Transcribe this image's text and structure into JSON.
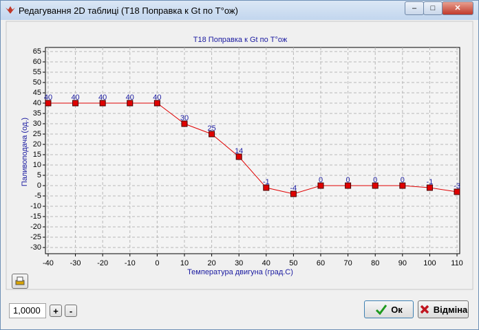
{
  "window": {
    "title": "Редагування 2D таблиці (T18 Поправка к Gt по T°ож)"
  },
  "chart_data": {
    "type": "line",
    "title": "T18 Поправка к Gt по T°ож",
    "x_label": "Температура двигуна (град.С)",
    "y_label": "Паливоподача (од.)",
    "x": [
      -40,
      -30,
      -20,
      -10,
      0,
      10,
      20,
      30,
      40,
      50,
      60,
      70,
      80,
      90,
      100,
      110
    ],
    "values": [
      40,
      40,
      40,
      40,
      40,
      30,
      25,
      14,
      -1,
      -4,
      0,
      0,
      0,
      0,
      -1,
      -3
    ],
    "color": "#e00000",
    "xlim": [
      -41,
      111
    ],
    "xticks": [
      -40,
      -30,
      -20,
      -10,
      0,
      10,
      20,
      30,
      40,
      50,
      60,
      70,
      80,
      90,
      100,
      110
    ],
    "ylim": [
      -33,
      67
    ],
    "yticks": [
      -30,
      -25,
      -20,
      -15,
      -10,
      -5,
      0,
      5,
      10,
      15,
      20,
      25,
      30,
      35,
      40,
      45,
      50,
      55,
      60,
      65
    ],
    "grid": true
  },
  "controls": {
    "step": "1,0000",
    "plus": "+",
    "minus": "-",
    "ok": "Ок",
    "cancel": "Відміна"
  }
}
